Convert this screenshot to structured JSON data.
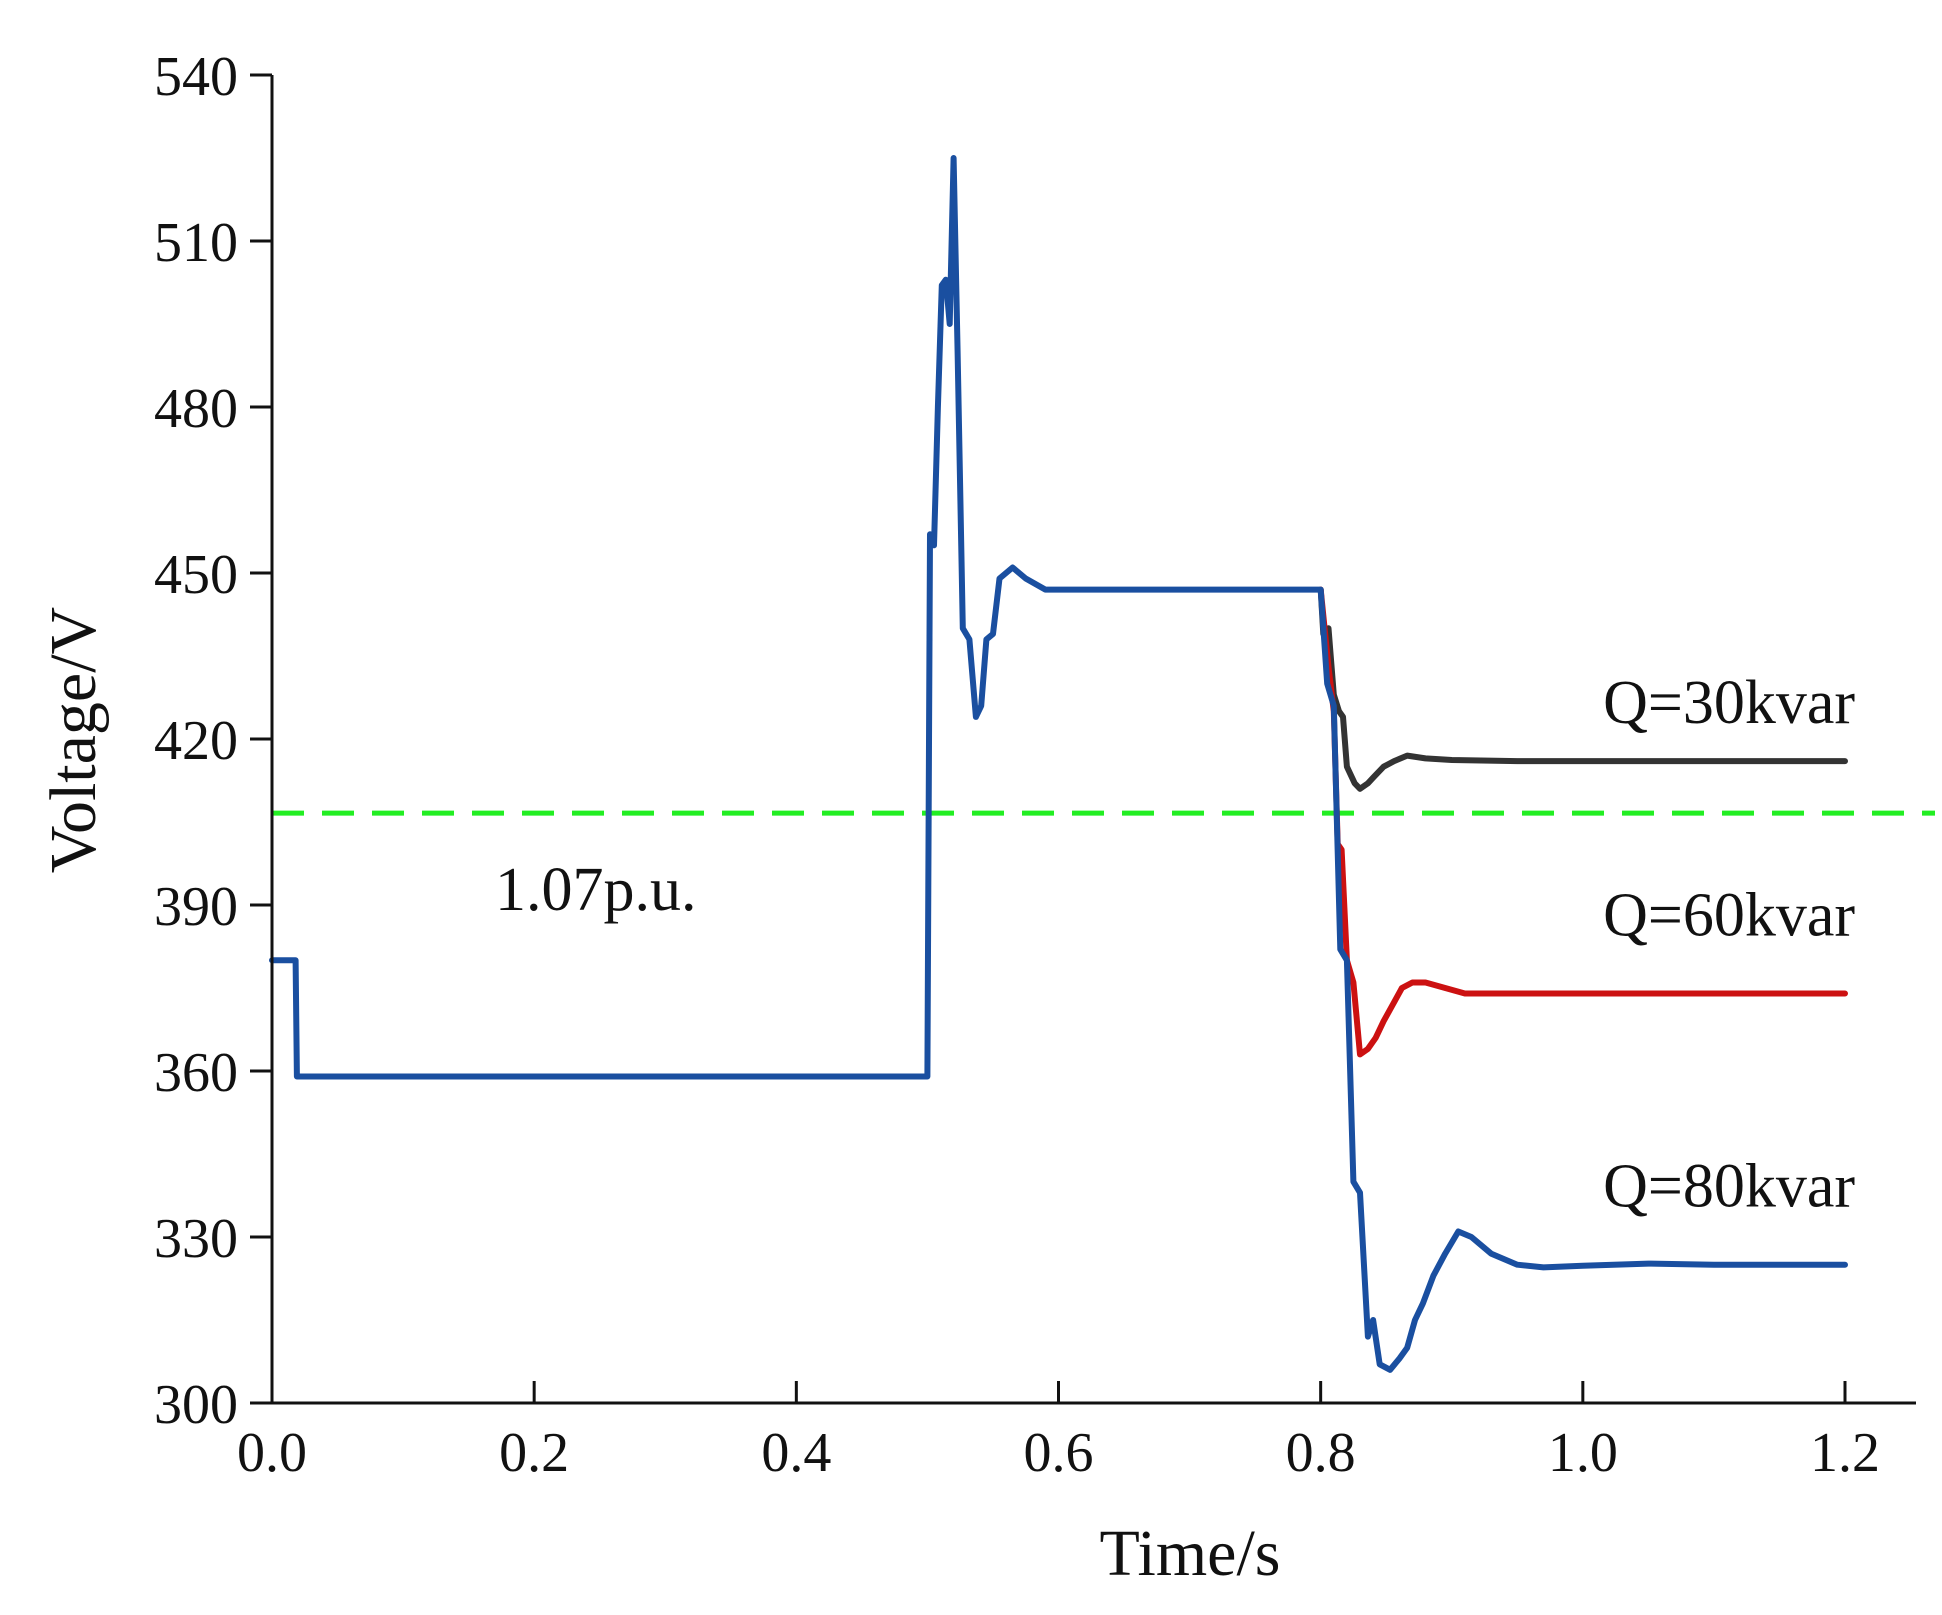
{
  "chart_data": {
    "type": "line",
    "title": "",
    "xlabel": "Time/s",
    "ylabel": "Voltage/V",
    "xlim": [
      0.0,
      1.2
    ],
    "ylim": [
      300,
      540
    ],
    "x_ticks": [
      "0.0",
      "0.2",
      "0.4",
      "0.6",
      "0.8",
      "1.0",
      "1.2"
    ],
    "y_ticks": [
      "300",
      "330",
      "360",
      "390",
      "420",
      "450",
      "480",
      "510",
      "540"
    ],
    "grid": false,
    "reference_line": {
      "label": "1.07p.u.",
      "y": 406.6,
      "color": "#22ee22",
      "style": "dashed"
    },
    "series": [
      {
        "name": "Q=30kvar",
        "color": "#333333",
        "points": [
          [
            0.8,
            447
          ],
          [
            0.802,
            439
          ],
          [
            0.806,
            440
          ],
          [
            0.81,
            428
          ],
          [
            0.814,
            425
          ],
          [
            0.817,
            424
          ],
          [
            0.82,
            415
          ],
          [
            0.826,
            412
          ],
          [
            0.83,
            411
          ],
          [
            0.836,
            412
          ],
          [
            0.84,
            413
          ],
          [
            0.848,
            415
          ],
          [
            0.856,
            416
          ],
          [
            0.866,
            417
          ],
          [
            0.88,
            416.5
          ],
          [
            0.9,
            416.2
          ],
          [
            0.95,
            416
          ],
          [
            1.0,
            416
          ],
          [
            1.1,
            416
          ],
          [
            1.2,
            416
          ]
        ]
      },
      {
        "name": "Q=60kvar",
        "color": "#cc1111",
        "points": [
          [
            0.8,
            447
          ],
          [
            0.803,
            440
          ],
          [
            0.806,
            433
          ],
          [
            0.81,
            425
          ],
          [
            0.813,
            401
          ],
          [
            0.816,
            400
          ],
          [
            0.82,
            380
          ],
          [
            0.825,
            376
          ],
          [
            0.83,
            363
          ],
          [
            0.836,
            364
          ],
          [
            0.842,
            366
          ],
          [
            0.848,
            369
          ],
          [
            0.855,
            372
          ],
          [
            0.862,
            375
          ],
          [
            0.87,
            376
          ],
          [
            0.88,
            376
          ],
          [
            0.895,
            375
          ],
          [
            0.91,
            374
          ],
          [
            0.94,
            374
          ],
          [
            1.0,
            374
          ],
          [
            1.1,
            374
          ],
          [
            1.2,
            374
          ]
        ]
      },
      {
        "name": "Q=80kvar",
        "color": "#1a4fa0",
        "points": [
          [
            0.0,
            380
          ],
          [
            0.018,
            380
          ],
          [
            0.019,
            359
          ],
          [
            0.5,
            359
          ],
          [
            0.502,
            457
          ],
          [
            0.505,
            455
          ],
          [
            0.508,
            480
          ],
          [
            0.511,
            502
          ],
          [
            0.514,
            503
          ],
          [
            0.517,
            495
          ],
          [
            0.52,
            525
          ],
          [
            0.523,
            490
          ],
          [
            0.527,
            440
          ],
          [
            0.532,
            438
          ],
          [
            0.537,
            424
          ],
          [
            0.541,
            426
          ],
          [
            0.545,
            438
          ],
          [
            0.55,
            439
          ],
          [
            0.555,
            449
          ],
          [
            0.565,
            451
          ],
          [
            0.575,
            449
          ],
          [
            0.59,
            447
          ],
          [
            0.7,
            447
          ],
          [
            0.8,
            447
          ],
          [
            0.805,
            430
          ],
          [
            0.81,
            426
          ],
          [
            0.815,
            382
          ],
          [
            0.82,
            380
          ],
          [
            0.825,
            340
          ],
          [
            0.83,
            338
          ],
          [
            0.836,
            312
          ],
          [
            0.84,
            315
          ],
          [
            0.845,
            307
          ],
          [
            0.853,
            306
          ],
          [
            0.86,
            308
          ],
          [
            0.866,
            310
          ],
          [
            0.872,
            315
          ],
          [
            0.878,
            318
          ],
          [
            0.886,
            323
          ],
          [
            0.895,
            327
          ],
          [
            0.905,
            331
          ],
          [
            0.915,
            330
          ],
          [
            0.93,
            327
          ],
          [
            0.95,
            325
          ],
          [
            0.97,
            324.5
          ],
          [
            1.0,
            324.8
          ],
          [
            1.05,
            325.2
          ],
          [
            1.1,
            325
          ],
          [
            1.2,
            325
          ]
        ]
      }
    ],
    "annotations": [
      {
        "text": "Q=30kvar",
        "series": "Q=30kvar"
      },
      {
        "text": "Q=60kvar",
        "series": "Q=60kvar"
      },
      {
        "text": "Q=80kvar",
        "series": "Q=80kvar"
      }
    ]
  }
}
